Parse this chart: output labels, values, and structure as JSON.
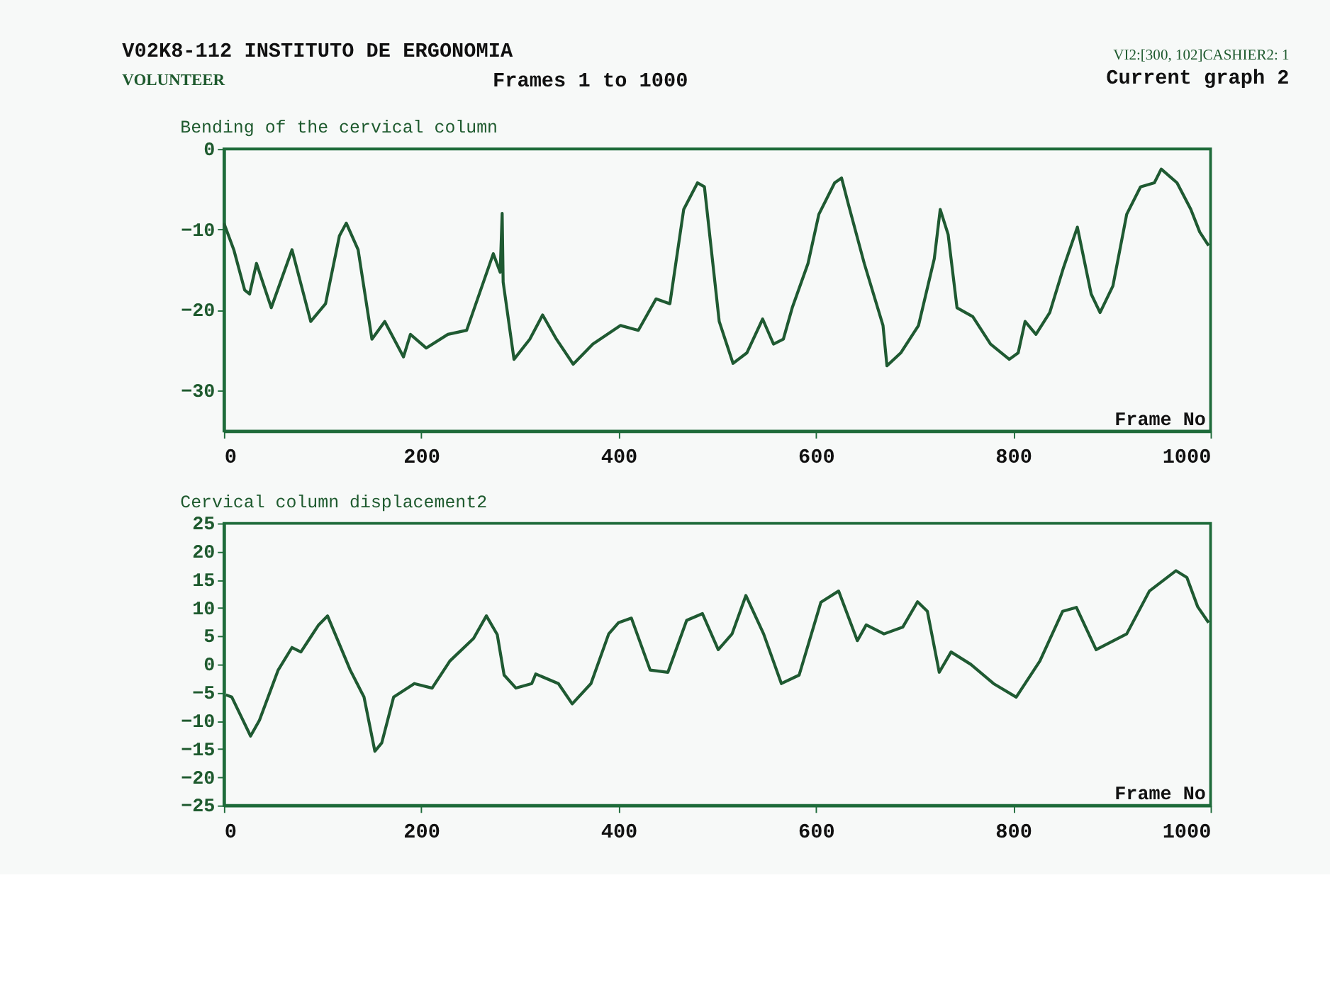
{
  "chart_data": [
    {
      "type": "line",
      "title": "Bending of the cervical column",
      "xlabel": "Frame No",
      "annotations": [
        "V02K8-112  INSTITUTO DE ERGONOMIA",
        "VOLUNTEER",
        "Frames 1 to 1000",
        "VI2:[300, 102]CASHIER2: 1",
        "Current graph 2"
      ],
      "xlim": [
        0,
        1000
      ],
      "xticks": [
        0,
        200,
        400,
        600,
        800,
        1000
      ],
      "ylim": [
        -35,
        0
      ],
      "yticks": [
        0,
        -10,
        -20,
        -30
      ],
      "grid": false,
      "series": [
        {
          "color": "#1f5a32",
          "x": [
            0,
            10,
            21,
            26,
            33,
            48,
            69,
            88,
            103,
            117,
            124,
            136,
            150,
            163,
            182,
            189,
            205,
            227,
            246,
            273,
            280,
            282,
            283,
            294,
            310,
            323,
            337,
            354,
            374,
            402,
            420,
            438,
            452,
            466,
            480,
            487,
            502,
            516,
            530,
            546,
            557,
            567,
            576,
            592,
            603,
            619,
            626,
            633,
            649,
            668,
            672,
            686,
            704,
            720,
            726,
            734,
            743,
            759,
            777,
            796,
            805,
            812,
            823,
            837,
            851,
            865,
            879,
            888,
            901,
            915,
            929,
            943,
            950,
            966,
            980,
            989,
            998
          ],
          "values": [
            -9.2,
            -12.5,
            -17.5,
            -18,
            -14.2,
            -19.7,
            -12.5,
            -21.4,
            -19.2,
            -10.8,
            -9.2,
            -12.5,
            -23.6,
            -21.4,
            -25.8,
            -23,
            -24.7,
            -23,
            -22.5,
            -13,
            -15.3,
            -8,
            -16.5,
            -26.1,
            -23.6,
            -20.6,
            -23.6,
            -26.7,
            -24.2,
            -21.9,
            -22.5,
            -18.6,
            -19.2,
            -7.5,
            -4.2,
            -4.7,
            -21.4,
            -26.6,
            -25.3,
            -21.1,
            -24.2,
            -23.6,
            -19.7,
            -14.2,
            -8.1,
            -4.2,
            -3.6,
            -6.9,
            -14.2,
            -21.9,
            -26.9,
            -25.3,
            -21.9,
            -13.6,
            -7.5,
            -10.6,
            -19.7,
            -20.8,
            -24.2,
            -26.1,
            -25.3,
            -21.4,
            -23,
            -20.3,
            -14.7,
            -9.7,
            -18,
            -20.3,
            -17,
            -8.1,
            -4.7,
            -4.2,
            -2.5,
            -4.2,
            -7.5,
            -10.3,
            -12
          ]
        }
      ]
    },
    {
      "type": "line",
      "title": "Cervical column displacement2",
      "xlabel": "Frame No",
      "xlim": [
        0,
        1000
      ],
      "xticks": [
        0,
        200,
        400,
        600,
        800,
        1000
      ],
      "ylim": [
        -25,
        25
      ],
      "yticks": [
        25,
        20,
        15,
        10,
        5,
        0,
        -5,
        -10,
        -15,
        -20,
        -25
      ],
      "grid": false,
      "series": [
        {
          "color": "#1f5a32",
          "x": [
            2,
            8,
            27,
            36,
            55,
            69,
            78,
            87,
            96,
            105,
            128,
            142,
            153,
            160,
            172,
            193,
            211,
            229,
            253,
            266,
            277,
            284,
            296,
            312,
            316,
            339,
            353,
            372,
            390,
            400,
            413,
            432,
            450,
            469,
            485,
            501,
            515,
            529,
            547,
            565,
            583,
            605,
            623,
            642,
            651,
            669,
            688,
            703,
            713,
            725,
            737,
            757,
            780,
            803,
            827,
            850,
            864,
            884,
            915,
            938,
            965,
            976,
            987,
            998
          ],
          "values": [
            -5.4,
            -5.8,
            -12.7,
            -9.9,
            -1,
            3,
            2.2,
            4.6,
            7,
            8.6,
            -1,
            -5.8,
            -15.4,
            -13.9,
            -5.8,
            -3.4,
            -4.2,
            0.6,
            4.6,
            8.6,
            5.3,
            -1.9,
            -4.2,
            -3.4,
            -1.7,
            -3.4,
            -7,
            -3.4,
            5.4,
            7.4,
            8.2,
            -1,
            -1.4,
            7.8,
            9,
            2.6,
            5.4,
            12.2,
            5.4,
            -3.4,
            -1.9,
            11,
            13,
            4.2,
            7,
            5.4,
            6.6,
            11.1,
            9.4,
            -1.4,
            2.2,
            0,
            -3.4,
            -5.8,
            0.6,
            9.4,
            10.1,
            2.6,
            5.4,
            13,
            16.6,
            15.4,
            10.2,
            7.4
          ]
        }
      ]
    }
  ]
}
